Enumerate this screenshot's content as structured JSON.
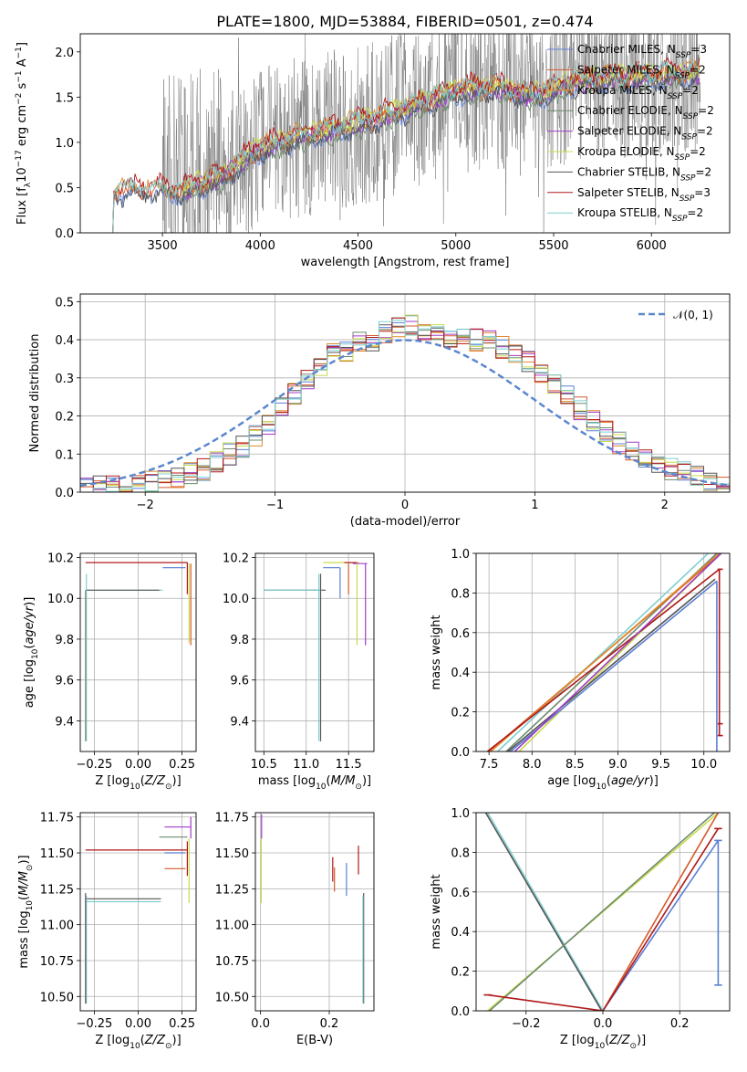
{
  "figure_title": "PLATE=1800, MJD=53884, FIBERID=0501, z=0.474",
  "colors": {
    "Chabrier MILES": "#5b7fd6",
    "Salpeter MILES": "#d65a2a",
    "Kroupa MILES": "#e08a2c",
    "Chabrier ELODIE": "#6e8b6e",
    "Salpeter ELODIE": "#a13cc8",
    "Kroupa ELODIE": "#c8dc4a",
    "Chabrier STELIB": "#555555",
    "Salpeter STELIB": "#b01818",
    "Kroupa STELIB": "#7fcfd0",
    "data": "#777777",
    "normal": "#5b87cf"
  },
  "chart_data": [
    {
      "id": "spectrum",
      "type": "line",
      "title": "PLATE=1800, MJD=53884, FIBERID=0501, z=0.474",
      "xlabel": "wavelength [Angstrom, rest frame]",
      "ylabel": "Flux [f_λ 10^-17 erg cm^-2 s^-1 A^-1]",
      "xlim": [
        3080,
        6400
      ],
      "ylim": [
        0,
        2.2
      ],
      "xticks": [
        3500,
        4000,
        4500,
        5000,
        5500,
        6000
      ],
      "yticks": [
        0.0,
        0.5,
        1.0,
        1.5,
        2.0
      ],
      "grid": false,
      "legend_position": "top-right",
      "legend": [
        {
          "label": "Chabrier MILES, N",
          "sub": "SSP",
          "tail": "=3"
        },
        {
          "label": "Salpeter MILES, N",
          "sub": "SSP",
          "tail": "=2"
        },
        {
          "label": "Kroupa MILES, N",
          "sub": "SSP",
          "tail": "=2"
        },
        {
          "label": "Chabrier ELODIE, N",
          "sub": "SSP",
          "tail": "=2"
        },
        {
          "label": "Salpeter ELODIE, N",
          "sub": "SSP",
          "tail": "=2"
        },
        {
          "label": "Kroupa ELODIE, N",
          "sub": "SSP",
          "tail": "=2"
        },
        {
          "label": "Chabrier STELIB, N",
          "sub": "SSP",
          "tail": "=2"
        },
        {
          "label": "Salpeter STELIB, N",
          "sub": "SSP",
          "tail": "=3"
        },
        {
          "label": "Kroupa STELIB, N",
          "sub": "SSP",
          "tail": "=2"
        }
      ],
      "model_trend": [
        [
          3240,
          0.45
        ],
        [
          3400,
          0.47
        ],
        [
          3600,
          0.45
        ],
        [
          3800,
          0.6
        ],
        [
          4000,
          0.92
        ],
        [
          4200,
          1.05
        ],
        [
          4400,
          1.15
        ],
        [
          4600,
          1.25
        ],
        [
          4800,
          1.4
        ],
        [
          5000,
          1.55
        ],
        [
          5200,
          1.6
        ],
        [
          5400,
          1.5
        ],
        [
          5600,
          1.65
        ],
        [
          5800,
          1.7
        ],
        [
          6000,
          1.72
        ],
        [
          6250,
          1.75
        ]
      ]
    },
    {
      "id": "residuals",
      "type": "line",
      "xlabel": "(data-model)/error",
      "ylabel": "Normed distribution",
      "xlim": [
        -2.5,
        2.5
      ],
      "ylim": [
        0,
        0.52
      ],
      "xticks": [
        -2,
        -1,
        0,
        1,
        2
      ],
      "yticks": [
        0.0,
        0.1,
        0.2,
        0.3,
        0.4,
        0.5
      ],
      "grid": true,
      "legend_position": "top-right",
      "legend": [
        "N(0,1)"
      ],
      "hist_x": [
        -2.5,
        -2.4,
        -2.3,
        -2.2,
        -2.1,
        -2.0,
        -1.9,
        -1.8,
        -1.7,
        -1.6,
        -1.5,
        -1.4,
        -1.3,
        -1.2,
        -1.1,
        -1.0,
        -0.9,
        -0.8,
        -0.7,
        -0.6,
        -0.5,
        -0.4,
        -0.3,
        -0.2,
        -0.1,
        0.0,
        0.1,
        0.2,
        0.3,
        0.4,
        0.5,
        0.6,
        0.7,
        0.8,
        0.9,
        1.0,
        1.1,
        1.2,
        1.3,
        1.4,
        1.5,
        1.6,
        1.7,
        1.8,
        1.9,
        2.0,
        2.1,
        2.2,
        2.3,
        2.4
      ],
      "hist_y": [
        0.01,
        0.015,
        0.015,
        0.02,
        0.02,
        0.025,
        0.03,
        0.04,
        0.05,
        0.06,
        0.08,
        0.1,
        0.12,
        0.15,
        0.18,
        0.22,
        0.26,
        0.3,
        0.33,
        0.36,
        0.37,
        0.39,
        0.4,
        0.42,
        0.43,
        0.44,
        0.43,
        0.42,
        0.41,
        0.41,
        0.4,
        0.4,
        0.38,
        0.36,
        0.34,
        0.31,
        0.28,
        0.25,
        0.22,
        0.19,
        0.16,
        0.13,
        0.11,
        0.09,
        0.07,
        0.06,
        0.05,
        0.04,
        0.03,
        0.02
      ]
    },
    {
      "id": "age_vs_Z",
      "type": "scatter",
      "xlabel": "Z [log10(Z/Z⊙)]",
      "ylabel": "age [log10(age/yr)]",
      "xlim": [
        -0.33,
        0.33
      ],
      "ylim": [
        9.25,
        10.22
      ],
      "xticks": [
        -0.25,
        0.0,
        0.25
      ],
      "xticklabels": [
        "−0.25",
        "0.00",
        "0.25"
      ],
      "yticks": [
        9.4,
        9.6,
        9.8,
        10.0,
        10.2
      ],
      "grid": true
    },
    {
      "id": "age_vs_mass",
      "type": "scatter",
      "xlabel": "mass [log10(M/M⊙)]",
      "xlim": [
        10.4,
        11.8
      ],
      "ylim": [
        9.25,
        10.22
      ],
      "xticks": [
        10.5,
        11.0,
        11.5
      ],
      "yticks": [
        9.4,
        9.6,
        9.8,
        10.0,
        10.2
      ],
      "grid": true
    },
    {
      "id": "weight_vs_age",
      "type": "line",
      "xlabel": "age [log10(age/yr)]",
      "ylabel": "mass weight",
      "xlim": [
        7.35,
        10.3
      ],
      "ylim": [
        0,
        1.0
      ],
      "xticks": [
        7.5,
        8.0,
        8.5,
        9.0,
        9.5,
        10.0
      ],
      "yticks": [
        0.0,
        0.2,
        0.4,
        0.6,
        0.8,
        1.0
      ],
      "grid": true
    },
    {
      "id": "mass_vs_Z",
      "type": "scatter",
      "xlabel": "Z [log10(Z/Z⊙)]",
      "ylabel": "mass [log10(M/M⊙)]",
      "xlim": [
        -0.33,
        0.33
      ],
      "ylim": [
        10.4,
        11.78
      ],
      "xticks": [
        -0.25,
        0.0,
        0.25
      ],
      "xticklabels": [
        "−0.25",
        "0.00",
        "0.25"
      ],
      "yticks": [
        10.5,
        10.75,
        11.0,
        11.25,
        11.5,
        11.75
      ],
      "grid": true
    },
    {
      "id": "mass_vs_ebv",
      "type": "scatter",
      "xlabel": "E(B-V)",
      "xlim": [
        -0.015,
        0.33
      ],
      "ylim": [
        10.4,
        11.78
      ],
      "xticks": [
        0.0,
        0.2
      ],
      "yticks": [
        10.5,
        10.75,
        11.0,
        11.25,
        11.5,
        11.75
      ],
      "grid": true
    },
    {
      "id": "weight_vs_Z",
      "type": "line",
      "xlabel": "Z [log10(Z/Z⊙)]",
      "ylabel": "mass weight",
      "xlim": [
        -0.33,
        0.33
      ],
      "ylim": [
        0,
        1.0
      ],
      "xticks": [
        -0.2,
        0.0,
        0.2
      ],
      "xticklabels": [
        "−0.2",
        "0.0",
        "0.2"
      ],
      "yticks": [
        0.0,
        0.2,
        0.4,
        0.6,
        0.8,
        1.0
      ],
      "grid": true
    }
  ]
}
